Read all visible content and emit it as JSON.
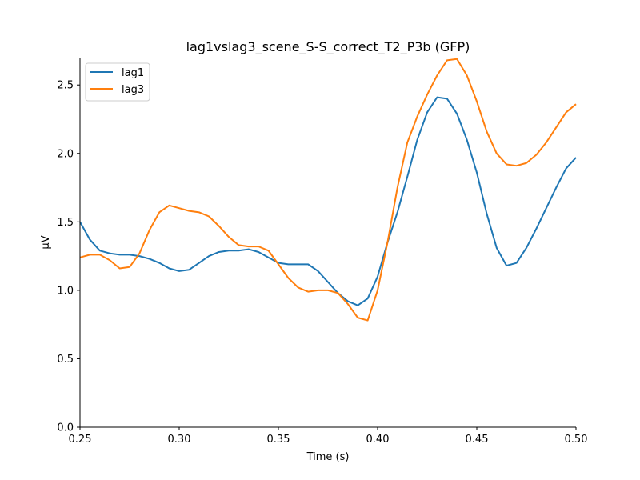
{
  "chart_data": {
    "type": "line",
    "title": "lag1vslag3_scene_S-S_correct_T2_P3b (GFP)",
    "xlabel": "Time (s)",
    "ylabel": "µV",
    "xlim": [
      0.25,
      0.5
    ],
    "ylim": [
      0,
      2.7
    ],
    "xticks": [
      0.25,
      0.3,
      0.35,
      0.4,
      0.45,
      0.5
    ],
    "xtick_labels": [
      "0.25",
      "0.30",
      "0.35",
      "0.40",
      "0.45",
      "0.50"
    ],
    "yticks": [
      0.0,
      0.5,
      1.0,
      1.5,
      2.0,
      2.5
    ],
    "ytick_labels": [
      "0.0",
      "0.5",
      "1.0",
      "1.5",
      "2.0",
      "2.5"
    ],
    "grid": false,
    "legend_position": "top-left",
    "x": [
      0.25,
      0.255,
      0.26,
      0.265,
      0.27,
      0.275,
      0.28,
      0.285,
      0.29,
      0.295,
      0.3,
      0.305,
      0.31,
      0.315,
      0.32,
      0.325,
      0.33,
      0.335,
      0.34,
      0.345,
      0.35,
      0.355,
      0.36,
      0.365,
      0.37,
      0.375,
      0.38,
      0.385,
      0.39,
      0.395,
      0.4,
      0.405,
      0.41,
      0.415,
      0.42,
      0.425,
      0.43,
      0.435,
      0.44,
      0.445,
      0.45,
      0.455,
      0.46,
      0.465,
      0.47,
      0.475,
      0.48,
      0.485,
      0.49,
      0.495,
      0.5
    ],
    "series": [
      {
        "name": "lag1",
        "color": "#1f77b4",
        "values": [
          1.5,
          1.37,
          1.29,
          1.27,
          1.26,
          1.26,
          1.25,
          1.23,
          1.2,
          1.16,
          1.14,
          1.15,
          1.2,
          1.25,
          1.28,
          1.29,
          1.29,
          1.3,
          1.28,
          1.24,
          1.2,
          1.19,
          1.19,
          1.19,
          1.14,
          1.06,
          0.98,
          0.92,
          0.89,
          0.94,
          1.1,
          1.35,
          1.57,
          1.83,
          2.1,
          2.3,
          2.41,
          2.4,
          2.29,
          2.1,
          1.86,
          1.56,
          1.31,
          1.18,
          1.2,
          1.31,
          1.45,
          1.6,
          1.75,
          1.89,
          1.97
        ]
      },
      {
        "name": "lag3",
        "color": "#ff7f0e",
        "values": [
          1.24,
          1.26,
          1.26,
          1.22,
          1.16,
          1.17,
          1.27,
          1.44,
          1.57,
          1.62,
          1.6,
          1.58,
          1.57,
          1.54,
          1.47,
          1.39,
          1.33,
          1.32,
          1.32,
          1.29,
          1.19,
          1.09,
          1.02,
          0.99,
          1.0,
          1.0,
          0.98,
          0.9,
          0.8,
          0.78,
          1.0,
          1.35,
          1.75,
          2.08,
          2.27,
          2.43,
          2.57,
          2.68,
          2.69,
          2.57,
          2.38,
          2.16,
          2.0,
          1.92,
          1.91,
          1.93,
          1.99,
          2.08,
          2.19,
          2.3,
          2.36
        ]
      }
    ]
  }
}
